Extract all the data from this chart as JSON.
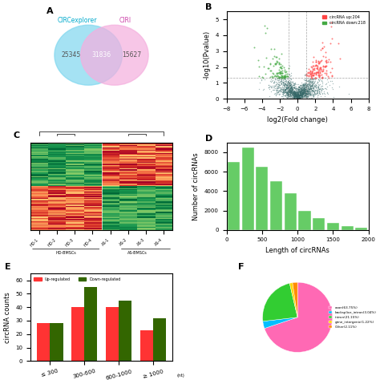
{
  "panel_A": {
    "circle1_label": "CIRCexplorer",
    "circle2_label": "CIRI",
    "circle1_only": "25345",
    "overlap": "31836",
    "circle2_only": "15627",
    "circle1_color": "#7FD7EF",
    "circle2_color": "#F5AEDE",
    "overlap_color": "#C89FD8"
  },
  "panel_B": {
    "xlabel": "log2(Fold change)",
    "ylabel": "-log10(Pvalue)",
    "legend_up": "circRNA up:204",
    "legend_down": "circRNA down:218",
    "up_color": "#FF4444",
    "down_color": "#44AA44",
    "base_color": "#336666",
    "xlim": [
      -8,
      8
    ],
    "ylim": [
      0,
      5.5
    ],
    "fc_threshold": 1,
    "pval_threshold": 1.3
  },
  "panel_D": {
    "bins": [
      0,
      200,
      400,
      600,
      800,
      1000,
      1200,
      1400,
      1600,
      1800,
      2000
    ],
    "heights": [
      7000,
      8500,
      6500,
      5000,
      3800,
      2000,
      1200,
      700,
      400,
      200
    ],
    "color": "#66CC66",
    "xlabel": "Length of circRNAs",
    "ylabel": "Number of circRNAs",
    "ylim": [
      0,
      9000
    ]
  },
  "panel_E": {
    "categories": [
      "≤ 300",
      "300-600",
      "600-1000",
      "≥ 1000"
    ],
    "up_values": [
      28,
      40,
      40,
      23
    ],
    "down_values": [
      28,
      55,
      45,
      32
    ],
    "up_color": "#FF3333",
    "down_color": "#336600",
    "xlabel": "(nt)",
    "ylabel": "circRNA counts",
    "ylim": [
      0,
      65
    ]
  },
  "panel_F": {
    "labels": [
      "exon(63.75%)",
      "backsplice_intron(3.04%)",
      "intron(21.15%)",
      "gene_intergenic(1.22%)",
      "Other(2.11%)"
    ],
    "sizes": [
      63.75,
      3.04,
      21.15,
      1.22,
      2.11
    ],
    "colors": [
      "#FF69B4",
      "#00BFFF",
      "#32CD32",
      "#FFD700",
      "#FF8C00"
    ]
  },
  "title_fontsize": 8,
  "label_fontsize": 6,
  "tick_fontsize": 5,
  "panel_labels": [
    "A",
    "B",
    "C",
    "D",
    "E",
    "F"
  ],
  "heatmap_sample_labels": [
    "HD-1",
    "HD-2",
    "HD-3",
    "HD-4",
    "AS-1",
    "AS-2",
    "AS-3",
    "AS-4"
  ],
  "heatmap_group1": "HD-BMSCs",
  "heatmap_group2": "AS-BMSCs"
}
